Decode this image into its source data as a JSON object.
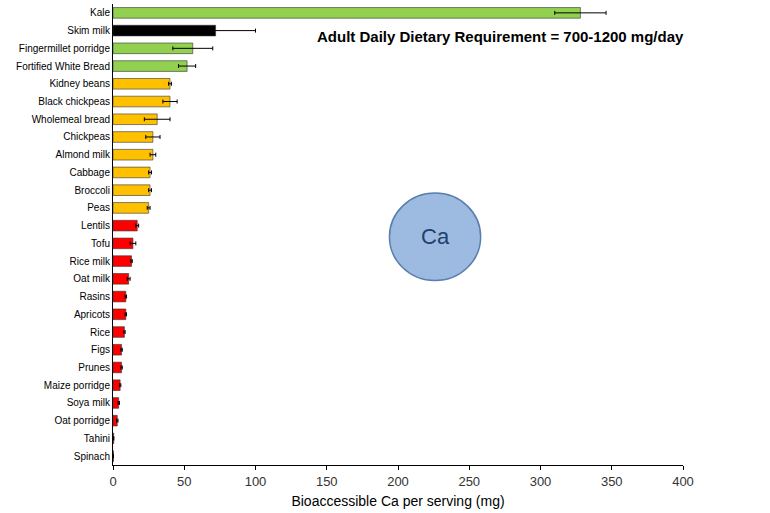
{
  "chart_data": {
    "type": "bar",
    "orientation": "horizontal",
    "categories": [
      "Kale",
      "Skim milk",
      "Fingermillet porridge",
      "Fortified White Bread",
      "Kidney beans",
      "Black chickpeas",
      "Wholemeal bread",
      "Chickpeas",
      "Almond milk",
      "Cabbage",
      "Broccoli",
      "Peas",
      "Lentils",
      "Tofu",
      "Rice milk",
      "Oat milk",
      "Rasins",
      "Apricots",
      "Rice",
      "Figs",
      "Prunes",
      "Maize porridge",
      "Soya milk",
      "Oat porridge",
      "Tahini",
      "Spinach"
    ],
    "values": [
      328,
      72,
      56,
      52,
      40,
      40,
      31,
      28,
      28,
      26,
      26,
      25,
      17,
      14,
      13,
      11,
      9,
      9,
      8,
      6,
      6,
      5,
      4,
      3,
      0.5,
      0.3
    ],
    "errors": [
      18,
      28,
      14,
      6,
      1,
      5,
      9,
      5,
      2,
      1,
      1,
      1,
      1,
      2,
      0.5,
      1,
      0.5,
      0.5,
      0.5,
      0.5,
      0.5,
      0.5,
      0.5,
      0.5,
      0,
      0
    ],
    "colors": [
      "#92d050",
      "#000000",
      "#92d050",
      "#92d050",
      "#ffc000",
      "#ffc000",
      "#ffc000",
      "#ffc000",
      "#ffc000",
      "#ffc000",
      "#ffc000",
      "#ffc000",
      "#ff0000",
      "#ff0000",
      "#ff0000",
      "#ff0000",
      "#ff0000",
      "#ff0000",
      "#ff0000",
      "#ff0000",
      "#ff0000",
      "#ff0000",
      "#ff0000",
      "#ff0000",
      "#ff0000",
      "#ff0000"
    ],
    "x_label": "Bioaccessible Ca per serving (mg)",
    "xlim": [
      0,
      400
    ],
    "xticks": [
      0,
      50,
      100,
      150,
      200,
      250,
      300,
      350,
      400
    ],
    "annotations": [
      "Adult Daily Dietary Requirement = 700-1200 mg/day",
      "Ca"
    ],
    "grid": false
  }
}
